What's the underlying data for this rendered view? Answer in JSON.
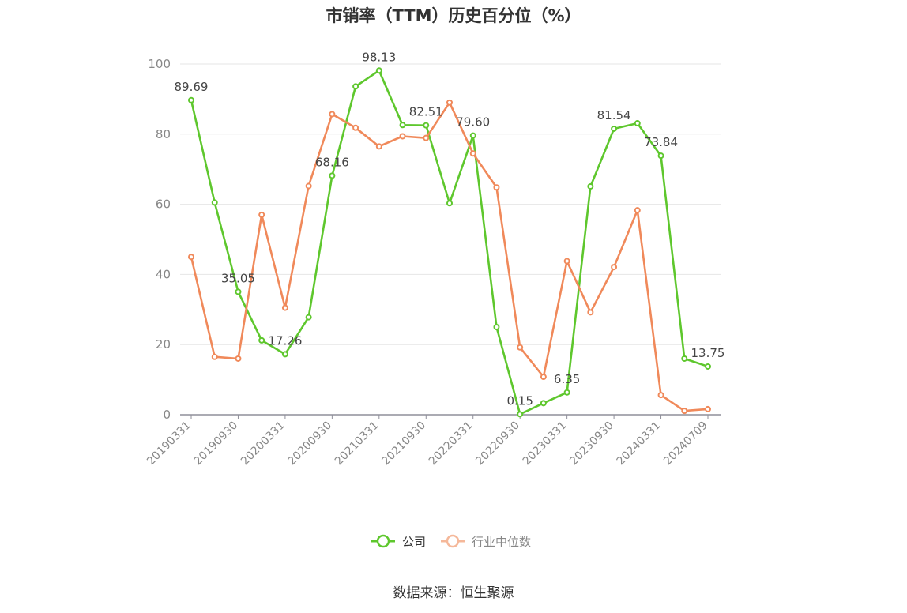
{
  "chart_data": {
    "type": "line",
    "title": "市销率（TTM）历史百分位（%）",
    "x": [
      "20190331",
      "20190630",
      "20190930",
      "20191231",
      "20200331",
      "20200630",
      "20200930",
      "20201231",
      "20210331",
      "20210630",
      "20210930",
      "20211231",
      "20220331",
      "20220630",
      "20220930",
      "20221231",
      "20230331",
      "20230630",
      "20230930",
      "20231231",
      "20240331",
      "20240630",
      "20240709"
    ],
    "x_tick_labels": [
      "20190331",
      "20190930",
      "20200331",
      "20200930",
      "20210331",
      "20210930",
      "20220331",
      "20220930",
      "20230331",
      "20230930",
      "20240331",
      "20240709"
    ],
    "ylim": [
      0,
      100
    ],
    "y_ticks": [
      0,
      20,
      40,
      60,
      80,
      100
    ],
    "grid": true,
    "legend_position": "bottom-center",
    "series": [
      {
        "name": "公司",
        "color": "#5ec72d",
        "values": [
          89.69,
          60.5,
          35.05,
          21.2,
          17.26,
          27.8,
          68.16,
          93.6,
          98.13,
          82.6,
          82.51,
          60.3,
          79.6,
          25.0,
          0.15,
          3.3,
          6.35,
          65.1,
          81.54,
          83.1,
          73.84,
          16.0,
          13.75
        ],
        "labeled_points": [
          {
            "index": 0,
            "text": "89.69"
          },
          {
            "index": 2,
            "text": "35.05"
          },
          {
            "index": 4,
            "text": "17.26"
          },
          {
            "index": 6,
            "text": "68.16"
          },
          {
            "index": 8,
            "text": "98.13"
          },
          {
            "index": 10,
            "text": "82.51"
          },
          {
            "index": 12,
            "text": "79.60"
          },
          {
            "index": 14,
            "text": "0.15"
          },
          {
            "index": 16,
            "text": "6.35"
          },
          {
            "index": 18,
            "text": "81.54"
          },
          {
            "index": 20,
            "text": "73.84"
          },
          {
            "index": 22,
            "text": "13.75"
          }
        ]
      },
      {
        "name": "行业中位数",
        "color": "#f0895a",
        "values": [
          45.0,
          16.5,
          16.0,
          57.0,
          30.5,
          65.2,
          85.7,
          81.8,
          76.5,
          79.4,
          78.9,
          89.0,
          74.5,
          64.8,
          19.2,
          10.8,
          43.8,
          29.2,
          42.1,
          58.3,
          5.6,
          1.1,
          1.6
        ]
      }
    ]
  },
  "source": "数据来源：恒生聚源"
}
